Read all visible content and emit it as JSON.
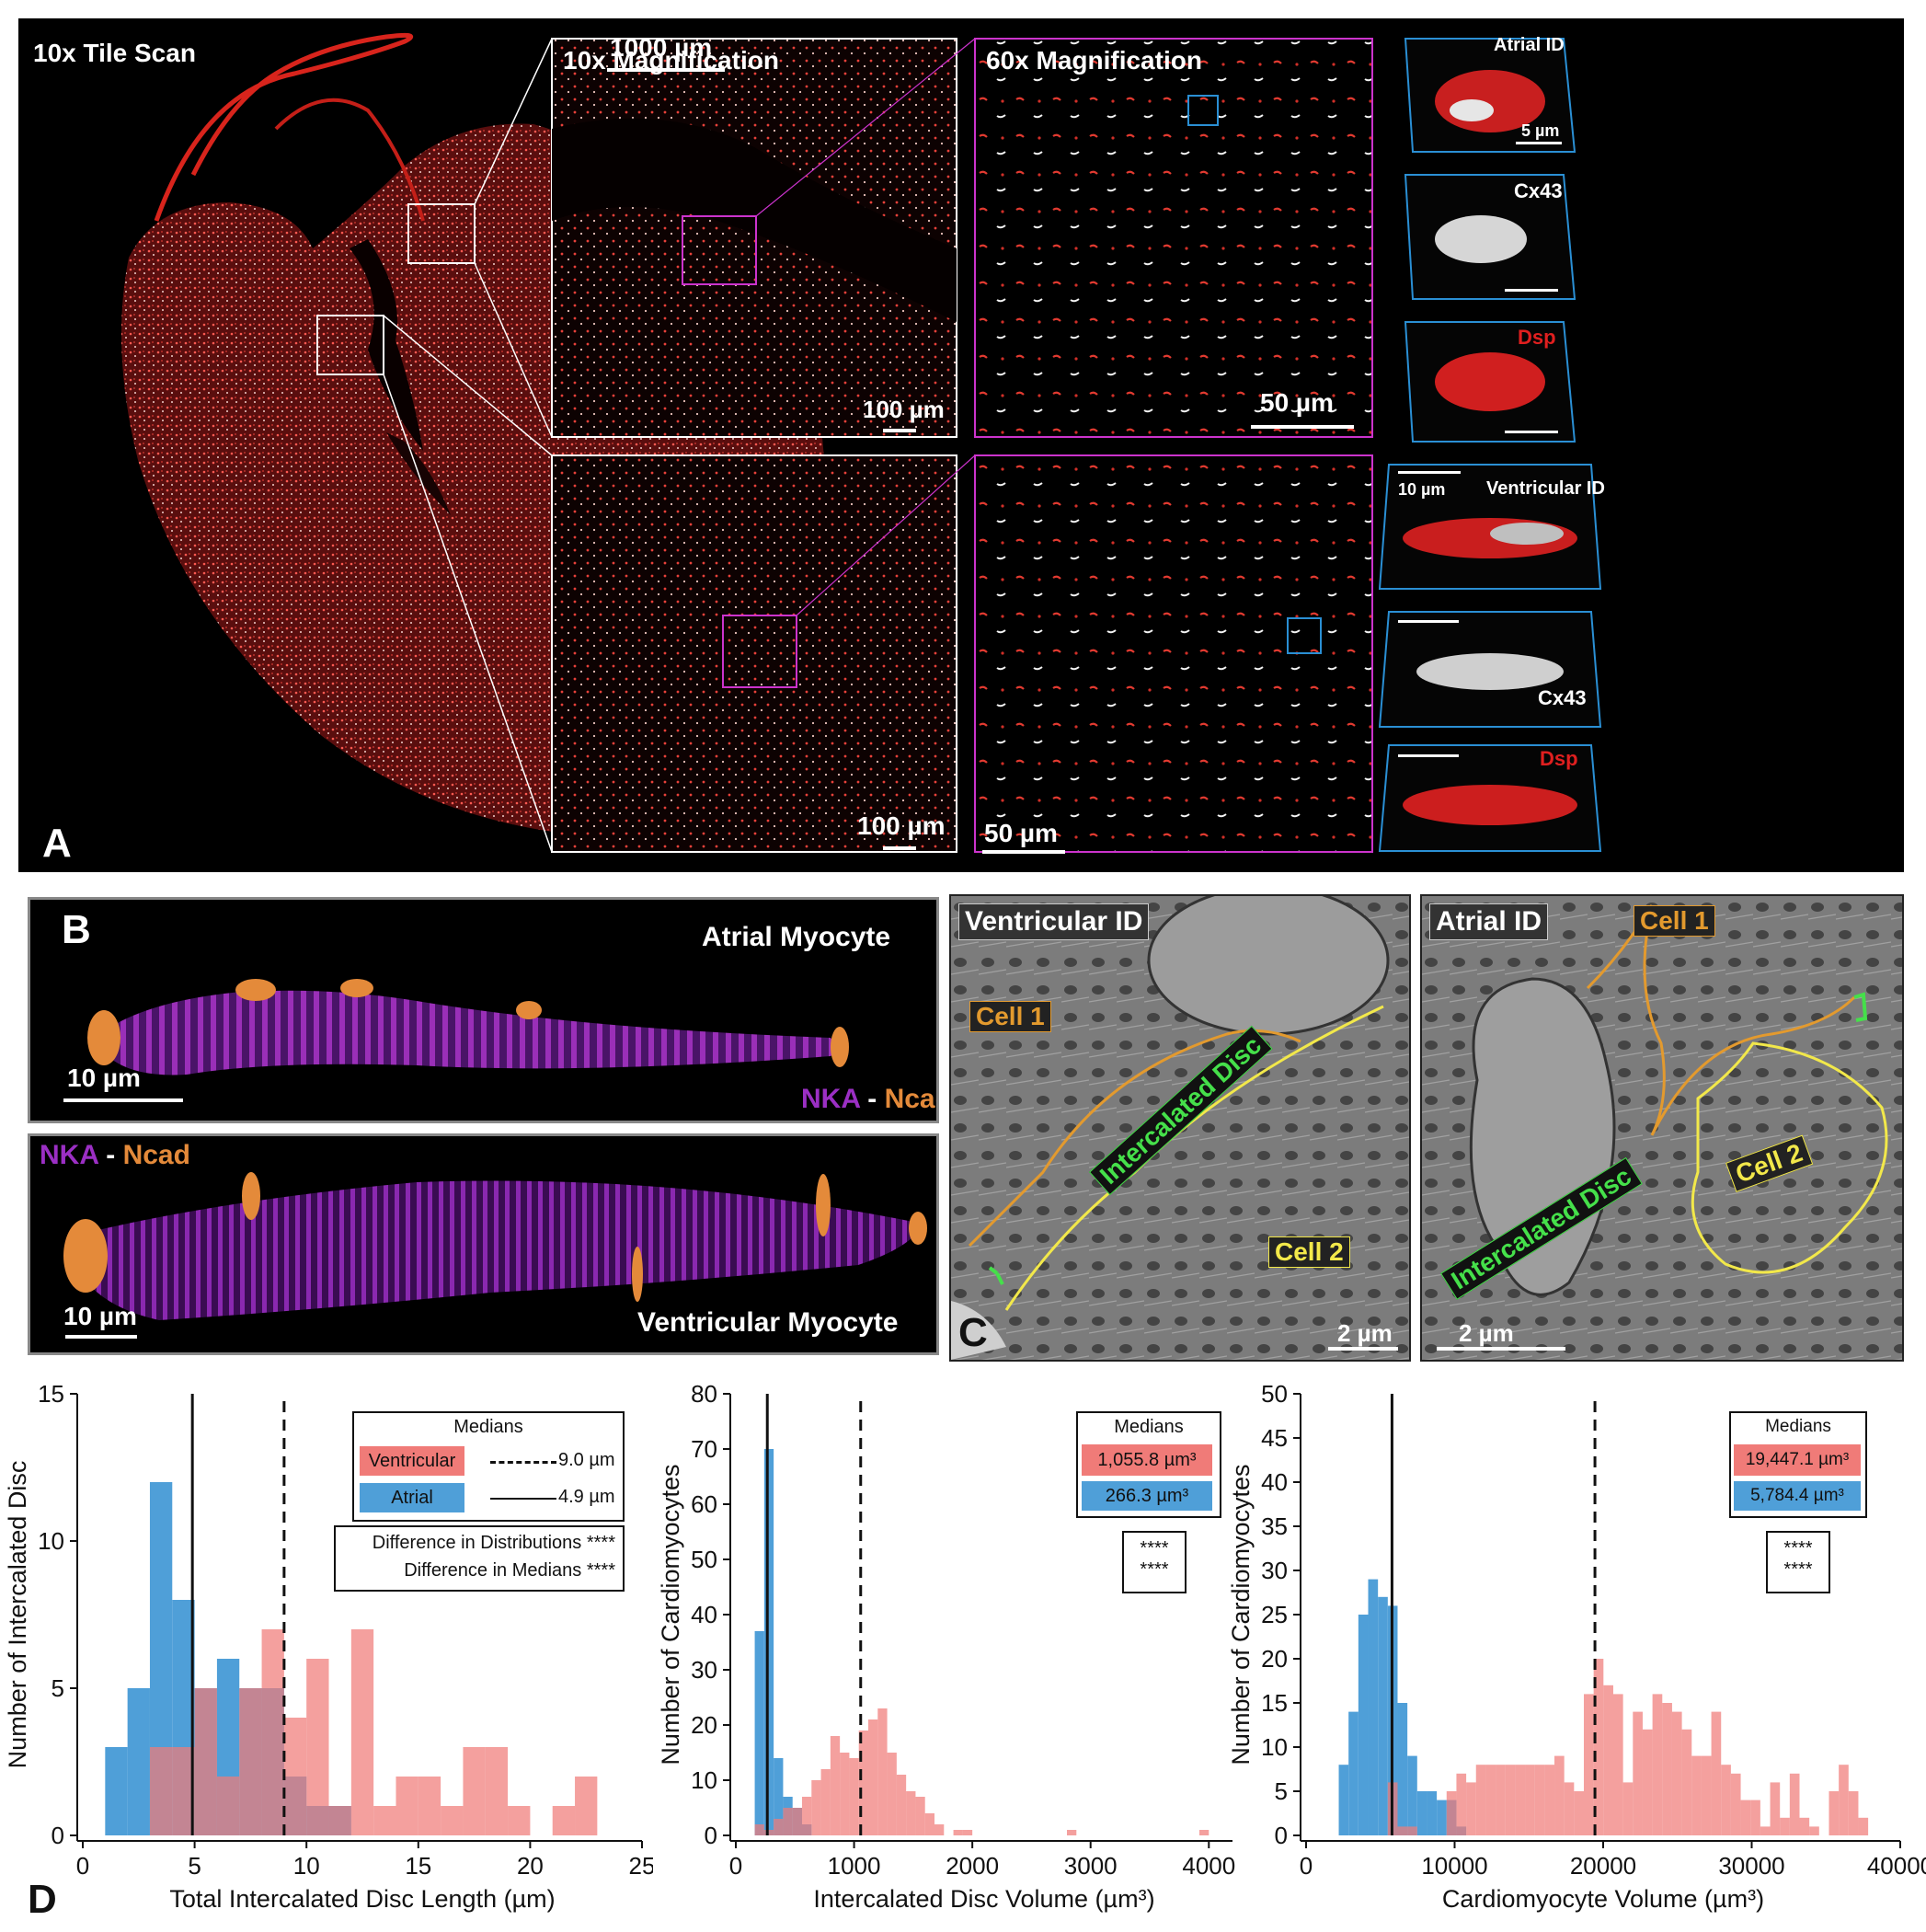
{
  "panel_a": {
    "letter": "A",
    "tile_scan_label": "10x Tile Scan",
    "tile_scan_bar": "1000 µm",
    "mag10_label": "10x Magnification",
    "mag60_label": "60x Magnification",
    "bar_100_top": "100 µm",
    "bar_50_top": "50 µm",
    "bar_100_bottom": "100 µm",
    "bar_50_bottom": "50 µm",
    "atrial_id": "Atrial ID",
    "atrial_bar": "5 µm",
    "cx43_top": "Cx43",
    "dsp_top": "Dsp",
    "vent_bar": "10 µm",
    "ventricular_id": "Ventricular ID",
    "cx43_bottom": "Cx43",
    "dsp_bottom": "Dsp"
  },
  "panel_b": {
    "letter": "B",
    "atrial_title": "Atrial Myocyte",
    "atrial_bar": "10 µm",
    "nka": "NKA",
    "dash": "-",
    "ncad": "Ncad",
    "vent_title": "Ventricular Myocyte",
    "vent_bar": "10 µm",
    "nka2": "NKA",
    "dash2": "-",
    "ncad2": "Ncad"
  },
  "panel_c": {
    "letter": "C",
    "left_title": "Ventricular ID",
    "left_cell1": "Cell 1",
    "left_cell2": "Cell 2",
    "left_disc": "Intercalated Disc",
    "left_bar": "2 µm",
    "right_title": "Atrial ID",
    "right_cell1": "Cell 1",
    "right_cell2": "Cell 2",
    "right_disc": "Intercalated Disc",
    "right_bar": "2 µm"
  },
  "panel_d": {
    "letter": "D"
  },
  "colors": {
    "ventricular": "#f07b78",
    "atrial": "#4f9fd8",
    "overlap": "#a2707e",
    "magenta": "#cc33cc",
    "cyan": "#2a8fd4",
    "orange": "#e39a2e",
    "yellow": "#f2e84a",
    "green": "#45e04a"
  },
  "chart_data": [
    {
      "type": "bar",
      "xlabel": "Total Intercalated Disc Length (µm)",
      "ylabel": "Number of Intercalated Disc",
      "xlim": [
        0,
        25
      ],
      "ylim": [
        0,
        15
      ],
      "xticks": [
        0,
        5,
        10,
        15,
        20,
        25
      ],
      "yticks": [
        0,
        5,
        10,
        15
      ],
      "bin_width": 1,
      "series": [
        {
          "name": "Atrial",
          "bin_starts": [
            1,
            2,
            3,
            4,
            5,
            6,
            7,
            8,
            9,
            10,
            11
          ],
          "values": [
            3,
            5,
            12,
            8,
            5,
            6,
            5,
            5,
            2,
            1,
            1
          ]
        },
        {
          "name": "Ventricular",
          "bin_starts": [
            3,
            4,
            5,
            6,
            7,
            8,
            9,
            10,
            11,
            12,
            13,
            14,
            15,
            16,
            17,
            18,
            19,
            21,
            22
          ],
          "values": [
            3,
            3,
            5,
            2,
            5,
            7,
            4,
            6,
            1,
            7,
            1,
            2,
            2,
            1,
            3,
            3,
            1,
            1,
            2
          ]
        }
      ],
      "medians": {
        "Ventricular": 9.0,
        "Atrial": 4.9
      },
      "legend": {
        "title": "Medians",
        "ventricular_label": "Ventricular",
        "ventricular_value": "9.0 µm",
        "atrial_label": "Atrial",
        "atrial_value": "4.9 µm",
        "dist_text": "Difference in Distributions",
        "dist_stars": "****",
        "median_text": "Difference in Medians",
        "median_stars": "****"
      }
    },
    {
      "type": "bar",
      "xlabel": "Intercalated Disc Volume (µm³)",
      "ylabel": "Number of Cardiomyocytes",
      "xlim": [
        0,
        4200
      ],
      "ylim": [
        0,
        80
      ],
      "xticks": [
        0,
        1000,
        2000,
        3000,
        4000
      ],
      "yticks": [
        0,
        10,
        20,
        30,
        40,
        50,
        60,
        70,
        80
      ],
      "bin_width": 80,
      "series": [
        {
          "name": "Atrial",
          "bin_starts": [
            160,
            240,
            320,
            400,
            480,
            560
          ],
          "values": [
            37,
            70,
            14,
            7,
            5,
            2
          ]
        },
        {
          "name": "Ventricular",
          "bin_starts": [
            160,
            240,
            320,
            400,
            480,
            560,
            640,
            720,
            800,
            880,
            960,
            1040,
            1120,
            1200,
            1280,
            1360,
            1440,
            1520,
            1600,
            1680,
            1840,
            1920,
            2800,
            3920
          ],
          "values": [
            2,
            1,
            3,
            5,
            5,
            7,
            10,
            12,
            18,
            15,
            14,
            19,
            21,
            23,
            15,
            11,
            8,
            7,
            4,
            2,
            1,
            1,
            1,
            1
          ]
        }
      ],
      "medians": {
        "Ventricular": 1055.8,
        "Atrial": 266.3
      },
      "legend": {
        "title": "Medians",
        "ventricular_value": "1,055.8 µm³",
        "atrial_value": "266.3 µm³",
        "stars1": "****",
        "stars2": "****"
      }
    },
    {
      "type": "bar",
      "xlabel": "Cardiomyocyte Volume (µm³)",
      "ylabel": "Number of Cardiomyocytes",
      "xlim": [
        0,
        40000
      ],
      "ylim": [
        0,
        50
      ],
      "xticks": [
        0,
        10000,
        20000,
        30000,
        40000
      ],
      "yticks": [
        0,
        5,
        10,
        15,
        20,
        25,
        30,
        35,
        40,
        45,
        50
      ],
      "bin_width": 660,
      "series": [
        {
          "name": "Atrial",
          "bin_starts": [
            2200,
            2860,
            3520,
            4180,
            4840,
            5500,
            6160,
            6820,
            7480,
            8140,
            8800,
            9460,
            10120
          ],
          "values": [
            8,
            14,
            25,
            29,
            27,
            26,
            15,
            9,
            5,
            5,
            4,
            4,
            1
          ]
        },
        {
          "name": "Ventricular",
          "bin_starts": [
            5500,
            6160,
            6820,
            9460,
            10120,
            10780,
            11440,
            12100,
            12760,
            13420,
            14080,
            14740,
            15400,
            16060,
            16720,
            17380,
            18040,
            18700,
            19360,
            20020,
            20680,
            21340,
            22000,
            22660,
            23320,
            23980,
            24640,
            25300,
            25960,
            26620,
            27280,
            27940,
            28600,
            29260,
            29920,
            30580,
            31240,
            31900,
            32560,
            33220,
            33880,
            35200,
            35860,
            36520,
            37180
          ],
          "values": [
            6,
            1,
            1,
            5,
            7,
            6,
            8,
            8,
            8,
            8,
            8,
            8,
            8,
            8,
            9,
            6,
            5,
            16,
            20,
            17,
            16,
            6,
            14,
            12,
            16,
            15,
            14,
            12,
            9,
            9,
            14,
            8,
            7,
            4,
            4,
            1,
            6,
            2,
            7,
            2,
            1,
            5,
            8,
            5,
            2
          ]
        }
      ],
      "medians": {
        "Ventricular": 19447.1,
        "Atrial": 5784.4
      },
      "legend": {
        "title": "Medians",
        "ventricular_value": "19,447.1 µm³",
        "atrial_value": "5,784.4 µm³",
        "stars1": "****",
        "stars2": "****"
      }
    }
  ]
}
